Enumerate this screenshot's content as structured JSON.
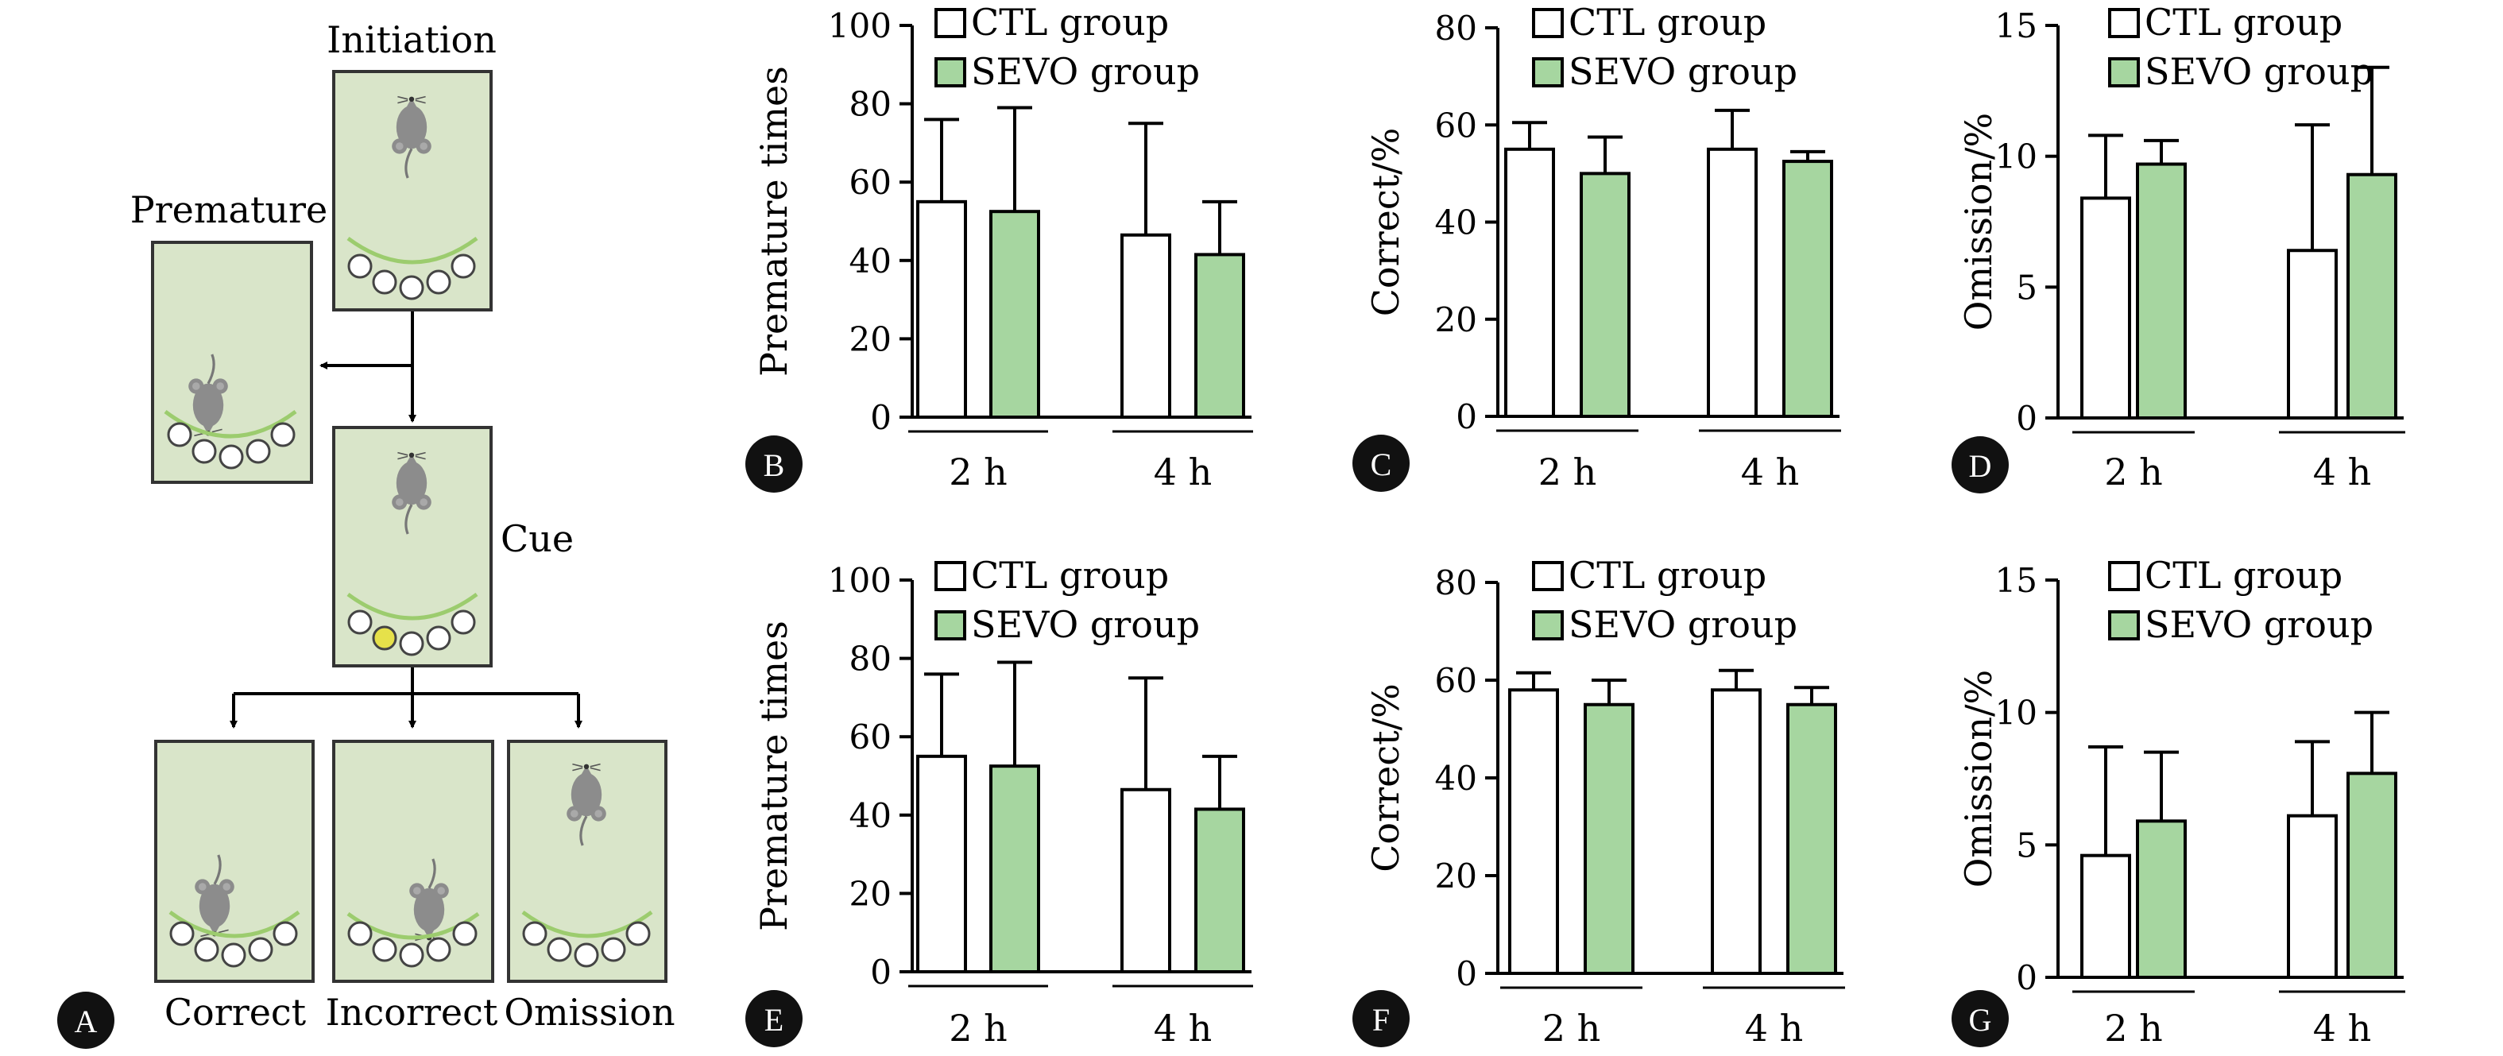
{
  "flow": {
    "badge": "A",
    "labels": {
      "initiation": "Initiation",
      "premature": "Premature",
      "cue": "Cue",
      "correct": "Correct",
      "incorrect": "Incorrect",
      "omission": "Omission"
    },
    "colors": {
      "box_fill": "#d9e5c9",
      "mouse": "#8c8c8c",
      "cue_light": "#e6e14a",
      "arc": "#9ccc6e"
    }
  },
  "legend": {
    "ctl": "CTL group",
    "sevo": "SEVO group"
  },
  "colors": {
    "ctl_fill": "#ffffff",
    "sevo_fill": "#a6d6a0",
    "stroke": "#000000",
    "badge": "#111111"
  },
  "chart_data": [
    {
      "badge": "B",
      "type": "bar",
      "ylabel": "Premature times",
      "ylim": [
        0,
        100
      ],
      "yticks": [
        "0",
        "20",
        "40",
        "60",
        "80",
        "100"
      ],
      "categories": [
        "2 h",
        "4 h"
      ],
      "series": [
        {
          "name": "CTL group",
          "values": [
            55,
            46.5
          ],
          "errors": [
            21,
            28.5
          ]
        },
        {
          "name": "SEVO group",
          "values": [
            52.5,
            41.5
          ],
          "errors": [
            26.5,
            13.5
          ]
        }
      ]
    },
    {
      "badge": "C",
      "type": "bar",
      "ylabel": "Correct/%",
      "ylim": [
        0,
        80
      ],
      "yticks": [
        "0",
        "20",
        "40",
        "60",
        "80"
      ],
      "categories": [
        "2 h",
        "4 h"
      ],
      "series": [
        {
          "name": "CTL group",
          "values": [
            55,
            55
          ],
          "errors": [
            5.5,
            8
          ]
        },
        {
          "name": "SEVO group",
          "values": [
            50,
            52.5
          ],
          "errors": [
            7.5,
            2
          ]
        }
      ]
    },
    {
      "badge": "D",
      "type": "bar",
      "ylabel": "Omission/%",
      "ylim": [
        0,
        15
      ],
      "yticks": [
        "0",
        "5",
        "10",
        "15"
      ],
      "categories": [
        "2 h",
        "4 h"
      ],
      "series": [
        {
          "name": "CTL group",
          "values": [
            8.4,
            6.4
          ],
          "errors": [
            2.4,
            4.8
          ]
        },
        {
          "name": "SEVO group",
          "values": [
            9.7,
            9.3
          ],
          "errors": [
            0.9,
            4.1
          ]
        }
      ]
    },
    {
      "badge": "E",
      "type": "bar",
      "ylabel": "Premature times",
      "ylim": [
        0,
        100
      ],
      "yticks": [
        "0",
        "20",
        "40",
        "60",
        "80",
        "100"
      ],
      "categories": [
        "2 h",
        "4 h"
      ],
      "series": [
        {
          "name": "CTL group",
          "values": [
            55,
            46.5
          ],
          "errors": [
            21,
            28.5
          ]
        },
        {
          "name": "SEVO group",
          "values": [
            52.5,
            41.5
          ],
          "errors": [
            26.5,
            13.5
          ]
        }
      ]
    },
    {
      "badge": "F",
      "type": "bar",
      "ylabel": "Correct/%",
      "ylim": [
        0,
        80
      ],
      "yticks": [
        "0",
        "20",
        "40",
        "60",
        "80"
      ],
      "categories": [
        "2 h",
        "4 h"
      ],
      "series": [
        {
          "name": "CTL group",
          "values": [
            58,
            58
          ],
          "errors": [
            3.5,
            4
          ]
        },
        {
          "name": "SEVO group",
          "values": [
            55,
            55
          ],
          "errors": [
            5,
            3.5
          ]
        }
      ]
    },
    {
      "badge": "G",
      "type": "bar",
      "ylabel": "Omission/%",
      "ylim": [
        0,
        15
      ],
      "yticks": [
        "0",
        "5",
        "10",
        "15"
      ],
      "categories": [
        "2 h",
        "4 h"
      ],
      "series": [
        {
          "name": "CTL group",
          "values": [
            4.6,
            6.1
          ],
          "errors": [
            4.1,
            2.8
          ]
        },
        {
          "name": "SEVO group",
          "values": [
            5.9,
            7.7
          ],
          "errors": [
            2.6,
            2.3
          ]
        }
      ]
    }
  ]
}
